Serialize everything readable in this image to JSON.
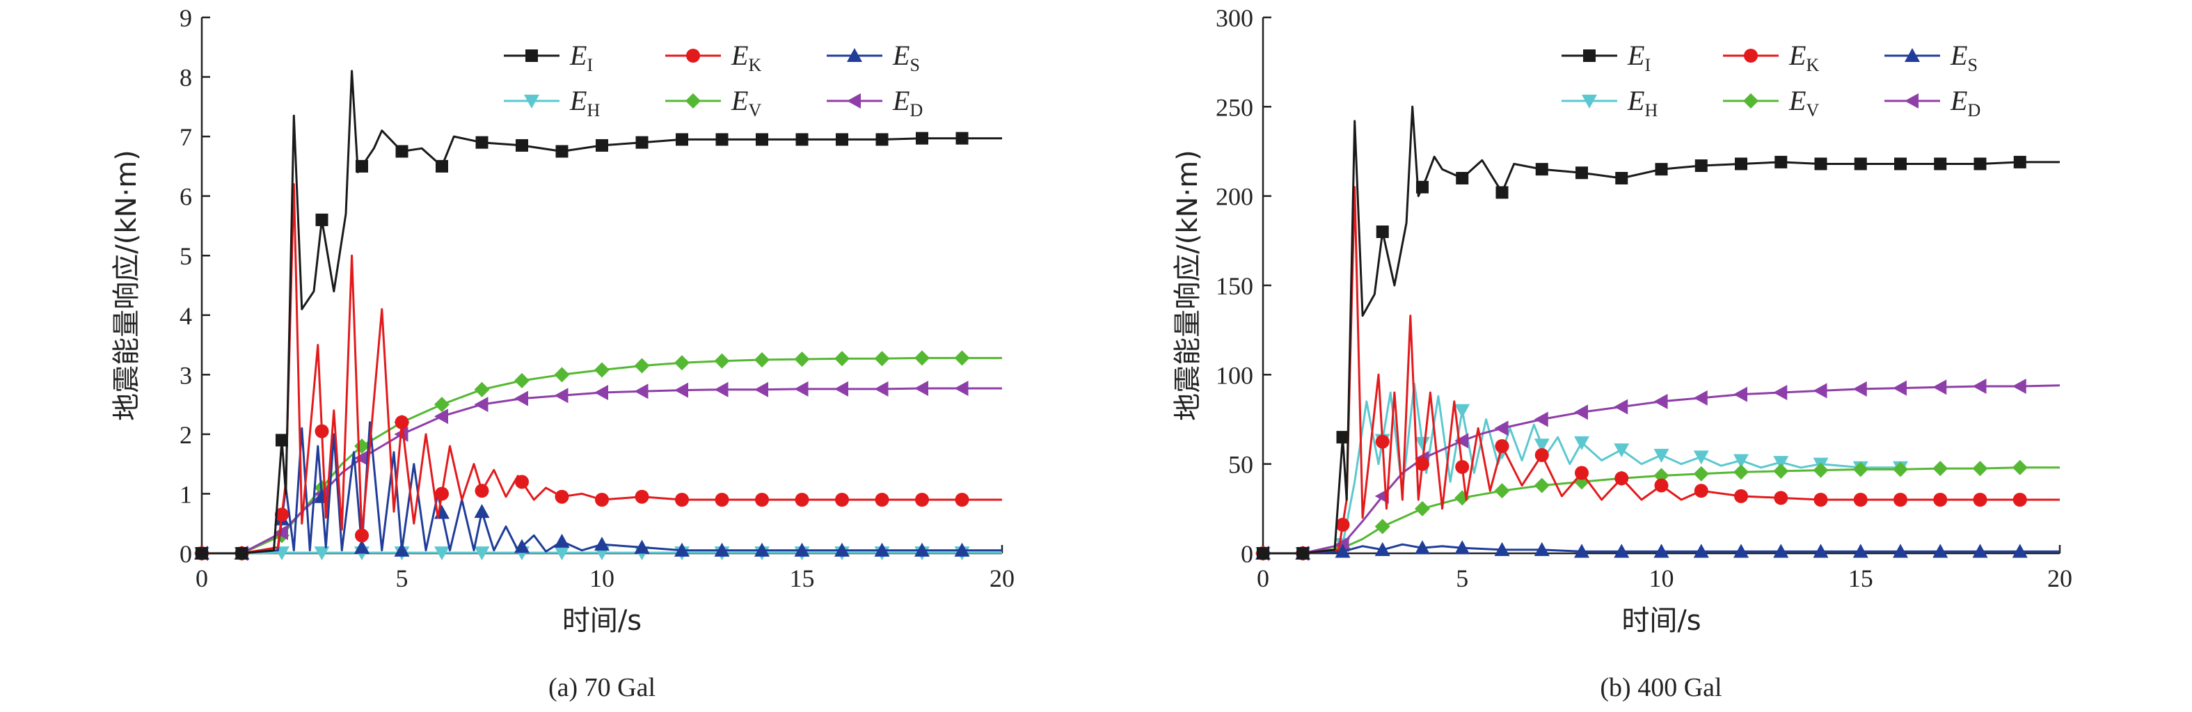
{
  "chart_data": [
    {
      "type": "line",
      "caption": "(a) 70 Gal",
      "xlabel": "时间/s",
      "ylabel": "地震能量响应/(kN·m)",
      "xlim": [
        0,
        20
      ],
      "ylim": [
        0,
        9
      ],
      "xticks": [
        "0",
        "5",
        "10",
        "15",
        "20"
      ],
      "yticks": [
        "0",
        "1",
        "2",
        "3",
        "4",
        "5",
        "6",
        "7",
        "8",
        "9"
      ],
      "legend_position": "top-right",
      "series": [
        {
          "name": "E",
          "sub": "I",
          "color": "#1a1a1a",
          "marker": "square",
          "x": [
            0,
            1,
            1.8,
            2.0,
            2.1,
            2.3,
            2.5,
            2.8,
            3.0,
            3.3,
            3.6,
            3.75,
            3.9,
            4.1,
            4.3,
            4.5,
            5.0,
            5.5,
            6.0,
            6.3,
            7.0,
            8.0,
            9.0,
            10.0,
            11.0,
            12.0,
            13.0,
            14.0,
            15.0,
            16.0,
            17.0,
            18.0,
            19.0,
            20.0
          ],
          "y": [
            0,
            0,
            0.05,
            1.9,
            1.0,
            7.35,
            4.1,
            4.4,
            5.6,
            4.4,
            5.7,
            8.1,
            6.4,
            6.6,
            6.8,
            7.1,
            6.75,
            6.8,
            6.5,
            7.0,
            6.9,
            6.85,
            6.75,
            6.85,
            6.9,
            6.95,
            6.95,
            6.95,
            6.95,
            6.95,
            6.95,
            6.97,
            6.97,
            6.97
          ]
        },
        {
          "name": "E",
          "sub": "K",
          "color": "#e31a1c",
          "marker": "circle",
          "x": [
            0,
            1,
            1.9,
            2.1,
            2.3,
            2.5,
            2.7,
            2.9,
            3.1,
            3.3,
            3.5,
            3.75,
            4.0,
            4.2,
            4.5,
            4.8,
            5.0,
            5.3,
            5.6,
            5.9,
            6.2,
            6.5,
            6.8,
            7.0,
            7.3,
            7.6,
            7.9,
            8.3,
            8.6,
            9.0,
            9.5,
            10.0,
            11.0,
            12.0,
            13.0,
            14.0,
            15.0,
            16.0,
            17.0,
            18.0,
            19.0,
            20.0
          ],
          "y": [
            0,
            0,
            0.1,
            1.2,
            6.2,
            0.5,
            2.0,
            3.5,
            0.6,
            2.4,
            0.4,
            5.0,
            0.3,
            1.8,
            4.1,
            0.7,
            2.2,
            0.5,
            2.0,
            0.6,
            1.8,
            0.9,
            1.5,
            1.05,
            1.4,
            0.95,
            1.3,
            0.9,
            1.1,
            0.95,
            1.0,
            0.9,
            0.95,
            0.9,
            0.9,
            0.9,
            0.9,
            0.9,
            0.9,
            0.9,
            0.9,
            0.9
          ]
        },
        {
          "name": "E",
          "sub": "S",
          "color": "#1f3d99",
          "marker": "triangle-up",
          "x": [
            0,
            1,
            1.9,
            2.1,
            2.3,
            2.5,
            2.7,
            2.9,
            3.1,
            3.3,
            3.5,
            3.8,
            4.0,
            4.2,
            4.5,
            4.8,
            5.0,
            5.3,
            5.6,
            5.9,
            6.2,
            6.5,
            6.8,
            7.0,
            7.3,
            7.6,
            7.9,
            8.3,
            8.6,
            9.0,
            9.5,
            10.0,
            11.0,
            12.0,
            13.0,
            14.0,
            15.0,
            16.0,
            17.0,
            18.0,
            19.0,
            20.0
          ],
          "y": [
            0,
            0,
            0.05,
            1.1,
            0.05,
            2.1,
            0.05,
            1.8,
            0.1,
            2.0,
            0.05,
            1.7,
            0.1,
            2.2,
            0.05,
            1.7,
            0.05,
            1.5,
            0.05,
            1.0,
            0.05,
            0.9,
            0.05,
            0.7,
            0.05,
            0.45,
            0.05,
            0.3,
            0.03,
            0.2,
            0.05,
            0.15,
            0.1,
            0.05,
            0.05,
            0.05,
            0.05,
            0.05,
            0.05,
            0.05,
            0.05,
            0.05
          ]
        },
        {
          "name": "E",
          "sub": "H",
          "color": "#5bc8d0",
          "marker": "triangle-down",
          "x": [
            0,
            1,
            2,
            3,
            4,
            5,
            6,
            7,
            8,
            9,
            10,
            11,
            12,
            13,
            14,
            15,
            16,
            17,
            18,
            19,
            20
          ],
          "y": [
            0,
            0,
            0.01,
            0.01,
            0.01,
            0.01,
            0.01,
            0.01,
            0.01,
            0.01,
            0.01,
            0.01,
            0.01,
            0.01,
            0.01,
            0.01,
            0.01,
            0.01,
            0.01,
            0.01,
            0.01
          ]
        },
        {
          "name": "E",
          "sub": "V",
          "color": "#55b832",
          "marker": "diamond",
          "x": [
            0,
            1,
            2,
            2.5,
            3,
            3.5,
            4,
            4.5,
            5,
            5.5,
            6,
            7,
            8,
            9,
            10,
            11,
            12,
            13,
            14,
            15,
            16,
            17,
            18,
            19,
            20
          ],
          "y": [
            0,
            0,
            0.3,
            0.7,
            1.1,
            1.5,
            1.8,
            2.0,
            2.2,
            2.35,
            2.5,
            2.75,
            2.9,
            3.0,
            3.08,
            3.15,
            3.2,
            3.23,
            3.25,
            3.26,
            3.27,
            3.27,
            3.28,
            3.28,
            3.28
          ]
        },
        {
          "name": "E",
          "sub": "D",
          "color": "#8e3ea8",
          "marker": "triangle-left",
          "x": [
            0,
            1,
            2,
            2.5,
            3,
            3.5,
            4,
            4.5,
            5,
            5.5,
            6,
            7,
            8,
            9,
            10,
            11,
            12,
            13,
            14,
            15,
            16,
            17,
            18,
            19,
            20
          ],
          "y": [
            0,
            0,
            0.35,
            0.7,
            1.0,
            1.35,
            1.6,
            1.8,
            2.0,
            2.15,
            2.3,
            2.5,
            2.6,
            2.65,
            2.7,
            2.72,
            2.74,
            2.75,
            2.75,
            2.76,
            2.76,
            2.76,
            2.77,
            2.77,
            2.77
          ]
        }
      ]
    },
    {
      "type": "line",
      "caption": "(b) 400 Gal",
      "xlabel": "时间/s",
      "ylabel": "地震能量响应/(kN·m)",
      "xlim": [
        0,
        20
      ],
      "ylim": [
        0,
        300
      ],
      "xticks": [
        "0",
        "5",
        "10",
        "15",
        "20"
      ],
      "yticks": [
        "0",
        "50",
        "100",
        "150",
        "200",
        "250",
        "300"
      ],
      "legend_position": "top-right",
      "series": [
        {
          "name": "E",
          "sub": "I",
          "color": "#1a1a1a",
          "marker": "square",
          "x": [
            0,
            1,
            1.8,
            2.0,
            2.1,
            2.3,
            2.5,
            2.8,
            3.0,
            3.3,
            3.6,
            3.75,
            3.9,
            4.1,
            4.3,
            4.5,
            5.0,
            5.5,
            6.0,
            6.3,
            7.0,
            8.0,
            9.0,
            10.0,
            11.0,
            12.0,
            13.0,
            14.0,
            15.0,
            16.0,
            17.0,
            18.0,
            19.0,
            20.0
          ],
          "y": [
            0,
            0,
            2,
            65,
            30,
            242,
            133,
            145,
            180,
            150,
            185,
            250,
            200,
            210,
            222,
            215,
            210,
            220,
            202,
            218,
            215,
            213,
            210,
            215,
            217,
            218,
            219,
            218,
            218,
            218,
            218,
            218,
            219,
            219
          ]
        },
        {
          "name": "E",
          "sub": "K",
          "color": "#e31a1c",
          "marker": "circle",
          "x": [
            0,
            1,
            1.9,
            2.1,
            2.3,
            2.5,
            2.7,
            2.9,
            3.1,
            3.3,
            3.5,
            3.7,
            3.9,
            4.2,
            4.5,
            4.8,
            5.1,
            5.4,
            5.7,
            6.0,
            6.5,
            7.0,
            7.5,
            8.0,
            8.5,
            9.0,
            9.5,
            10.0,
            10.5,
            11.0,
            12.0,
            13.0,
            14.0,
            15.0,
            16.0,
            17.0,
            18.0,
            19.0,
            20.0
          ],
          "y": [
            0,
            0,
            2,
            30,
            205,
            20,
            60,
            100,
            25,
            90,
            30,
            133,
            30,
            90,
            25,
            85,
            30,
            70,
            35,
            60,
            38,
            55,
            32,
            45,
            30,
            42,
            30,
            38,
            30,
            35,
            32,
            31,
            30,
            30,
            30,
            30,
            30,
            30,
            30
          ]
        },
        {
          "name": "E",
          "sub": "S",
          "color": "#1f3d99",
          "marker": "triangle-up",
          "x": [
            0,
            1,
            2,
            2.5,
            3,
            3.5,
            4,
            4.5,
            5,
            6,
            7,
            8,
            9,
            10,
            11,
            12,
            13,
            14,
            15,
            16,
            17,
            18,
            19,
            20
          ],
          "y": [
            0,
            0,
            1,
            4,
            2,
            5,
            3,
            4,
            3,
            2,
            2,
            1,
            1,
            1,
            1,
            1,
            1,
            1,
            1,
            1,
            1,
            1,
            1,
            1
          ]
        },
        {
          "name": "E",
          "sub": "H",
          "color": "#5bc8d0",
          "marker": "triangle-down",
          "x": [
            0,
            1,
            2.0,
            2.3,
            2.6,
            2.9,
            3.2,
            3.5,
            3.8,
            4.1,
            4.4,
            4.7,
            5.0,
            5.3,
            5.6,
            5.9,
            6.2,
            6.5,
            6.8,
            7.1,
            7.4,
            7.7,
            8.0,
            8.5,
            9.0,
            9.5,
            10.0,
            10.5,
            11.0,
            11.5,
            12.0,
            12.5,
            13.0,
            13.5,
            14.0,
            15.0,
            16.0
          ],
          "y": [
            0,
            0,
            5,
            40,
            85,
            50,
            90,
            35,
            95,
            45,
            88,
            40,
            80,
            45,
            75,
            50,
            70,
            52,
            72,
            55,
            65,
            50,
            62,
            52,
            58,
            50,
            55,
            50,
            54,
            49,
            52,
            48,
            51,
            48,
            50,
            48,
            48
          ]
        },
        {
          "name": "E",
          "sub": "V",
          "color": "#55b832",
          "marker": "diamond",
          "x": [
            0,
            1,
            2,
            2.5,
            3,
            3.5,
            4,
            4.5,
            5,
            5.5,
            6,
            7,
            8,
            9,
            10,
            11,
            12,
            13,
            14,
            15,
            16,
            17,
            18,
            19,
            20
          ],
          "y": [
            0,
            0,
            3,
            8,
            15,
            20,
            25,
            28,
            31,
            33,
            35,
            38,
            40,
            42,
            43.5,
            44.5,
            45.5,
            46,
            46.5,
            47,
            47,
            47.5,
            47.5,
            48,
            48
          ]
        },
        {
          "name": "E",
          "sub": "D",
          "color": "#8e3ea8",
          "marker": "triangle-left",
          "x": [
            0,
            1,
            2,
            2.5,
            3,
            3.5,
            4,
            4.5,
            5,
            5.5,
            6,
            7,
            8,
            9,
            10,
            11,
            12,
            13,
            14,
            15,
            16,
            17,
            18,
            19,
            20
          ],
          "y": [
            0,
            0,
            5,
            18,
            32,
            45,
            53,
            58,
            63,
            67,
            70,
            75,
            79,
            82,
            85,
            87,
            89,
            90,
            91,
            92,
            92.5,
            93,
            93.5,
            93.5,
            94
          ]
        }
      ]
    }
  ]
}
